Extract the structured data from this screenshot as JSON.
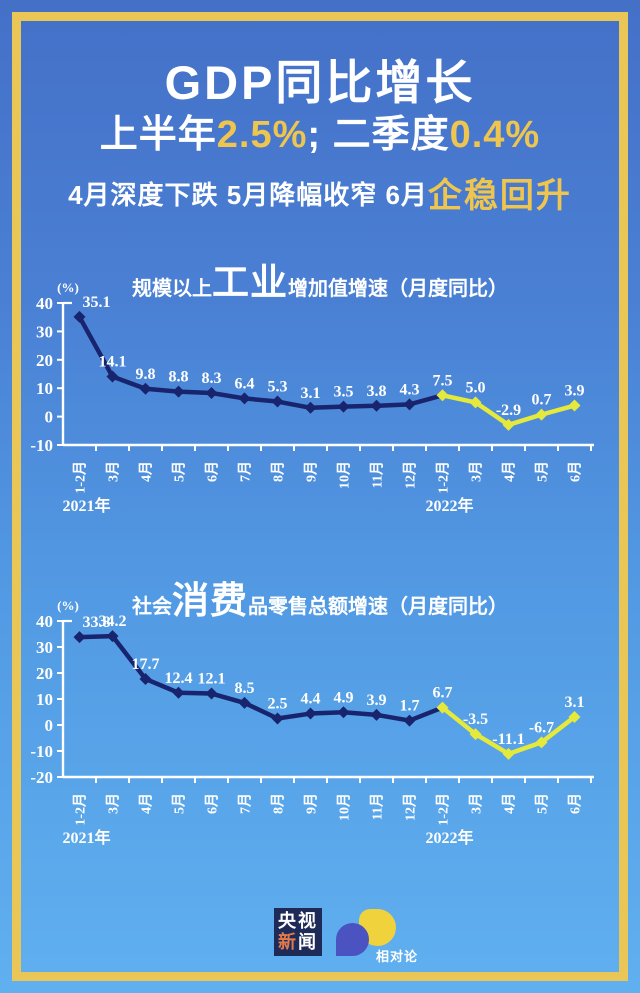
{
  "header": {
    "title": "GDP同比增长",
    "line2_pre": "上半年",
    "line2_val1": "2.5%",
    "line2_mid": "; 二季度",
    "line2_val2": "0.4%",
    "line3_pre": "4月深度下跌 5月降幅收窄 6月",
    "line3_em": "企稳回升"
  },
  "chart_data": [
    {
      "type": "line",
      "title_prefix": "规模以上",
      "title_emphasis": "工业",
      "title_suffix": "增加值增速（月度同比）",
      "unit_label": "(%)",
      "categories": [
        "1-2月",
        "3月",
        "4月",
        "5月",
        "6月",
        "7月",
        "8月",
        "9月",
        "10月",
        "11月",
        "12月",
        "1-2月",
        "3月",
        "4月",
        "5月",
        "6月"
      ],
      "values": [
        35.1,
        14.1,
        9.8,
        8.8,
        8.3,
        6.4,
        5.3,
        3.1,
        3.5,
        3.8,
        4.3,
        7.5,
        5.0,
        -2.9,
        0.7,
        3.9
      ],
      "split_index": 11,
      "line_colors": {
        "first_part": "#18246d",
        "second_part": "#e4e93c"
      },
      "yticks": [
        40,
        30,
        20,
        10,
        0,
        -10
      ],
      "ylim": [
        -10,
        40
      ],
      "grid": false,
      "legend_position": "none",
      "year_markers": [
        {
          "label": "2021年",
          "index": 0
        },
        {
          "label": "2022年",
          "index": 11
        }
      ]
    },
    {
      "type": "line",
      "title_prefix": "社会",
      "title_emphasis": "消费",
      "title_suffix": "品零售总额增速（月度同比）",
      "unit_label": "(%)",
      "categories": [
        "1-2月",
        "3月",
        "4月",
        "5月",
        "6月",
        "7月",
        "8月",
        "9月",
        "10月",
        "11月",
        "12月",
        "1-2月",
        "3月",
        "4月",
        "5月",
        "6月"
      ],
      "values": [
        33.8,
        34.2,
        17.7,
        12.4,
        12.1,
        8.5,
        2.5,
        4.4,
        4.9,
        3.9,
        1.7,
        6.7,
        -3.5,
        -11.1,
        -6.7,
        3.1
      ],
      "split_index": 11,
      "line_colors": {
        "first_part": "#18246d",
        "second_part": "#e4e93c"
      },
      "yticks": [
        40,
        30,
        20,
        10,
        0,
        -10,
        -20
      ],
      "ylim": [
        -20,
        40
      ],
      "grid": false,
      "legend_position": "none",
      "year_markers": [
        {
          "label": "2021年",
          "index": 0
        },
        {
          "label": "2022年",
          "index": 11
        }
      ]
    }
  ],
  "footer": {
    "cctv_logo": {
      "row1": "央视",
      "row2_highlight": "新",
      "row2_rest": "闻"
    },
    "relativity_logo_label": "相对论"
  },
  "colors": {
    "background_top": "#4470c8",
    "background_bottom": "#60b0f0",
    "frame_gold": "#e9c656",
    "accent_gold": "#eec54e",
    "line_2021_navy": "#18246d",
    "line_2022_yellow": "#e4e93c",
    "text_white": "#ffffff",
    "cctv_logo_bg": "#1e2a57",
    "cctv_logo_accent": "#e07a4c",
    "relativity_blue": "#4a53c0",
    "relativity_yellow": "#efd23c"
  }
}
